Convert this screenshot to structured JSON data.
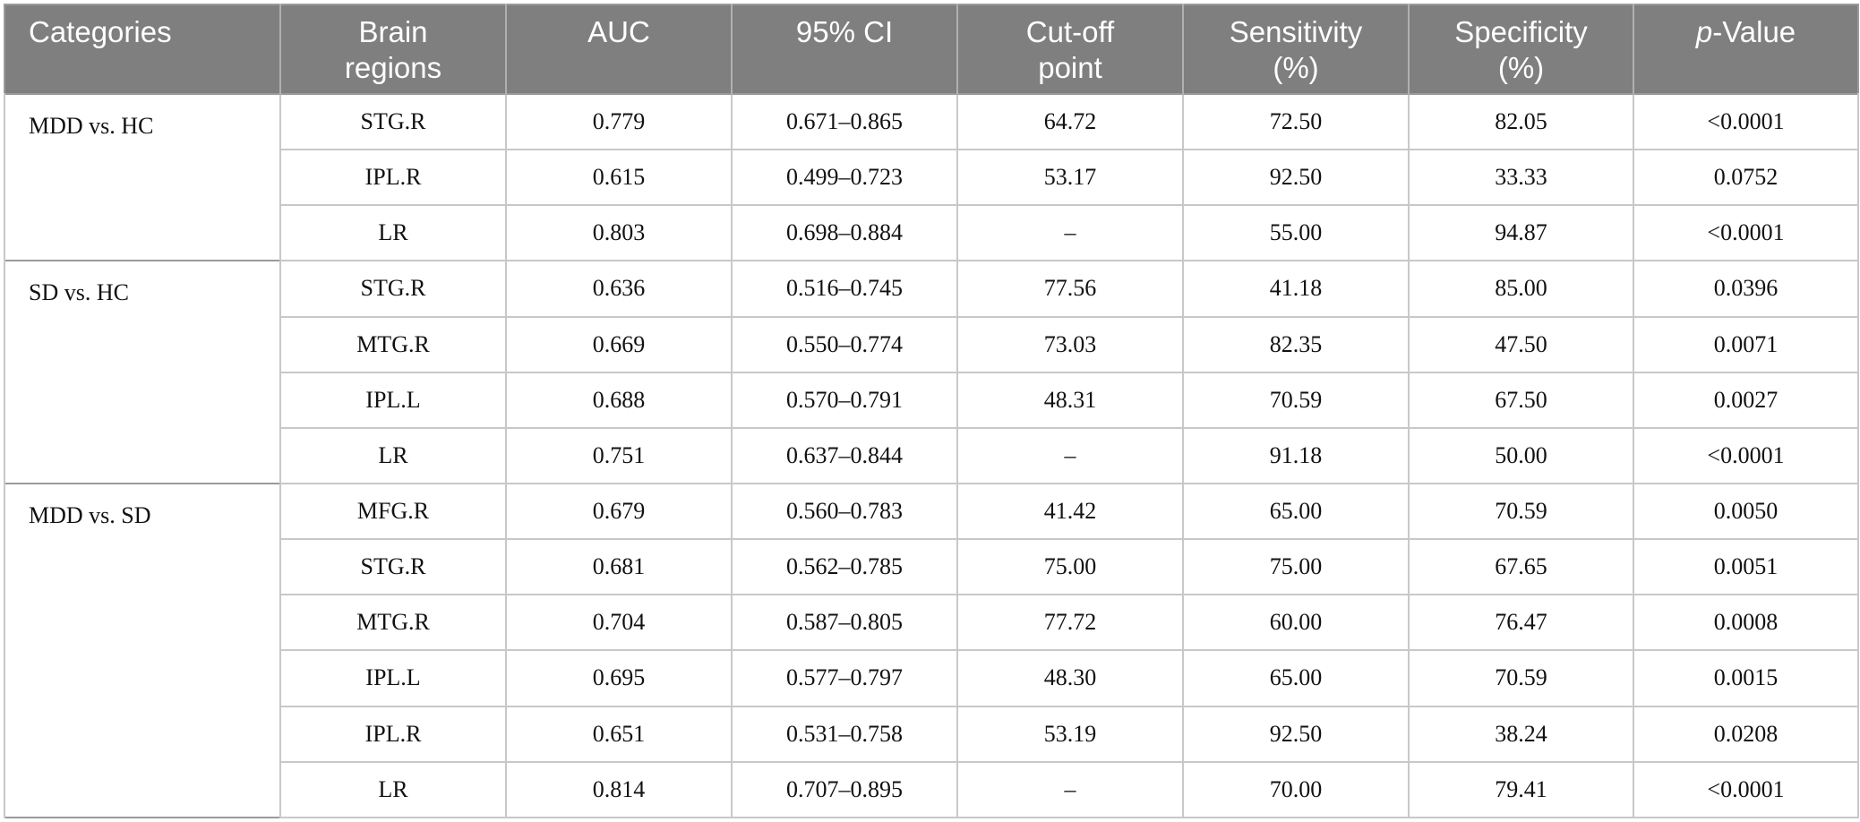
{
  "table": {
    "headers": [
      "Categories",
      "Brain\nregions",
      "AUC",
      "95% CI",
      "Cut-off\npoint",
      "Sensitivity\n(%)",
      "Specificity\n(%)",
      "p-Value"
    ],
    "header_pvalue_italic": "p",
    "header_pvalue_rest": "-Value",
    "groups": [
      {
        "category": "MDD vs. HC",
        "rows": [
          [
            "STG.R",
            "0.779",
            "0.671–0.865",
            "64.72",
            "72.50",
            "82.05",
            "<0.0001"
          ],
          [
            "IPL.R",
            "0.615",
            "0.499–0.723",
            "53.17",
            "92.50",
            "33.33",
            "0.0752"
          ],
          [
            "LR",
            "0.803",
            "0.698–0.884",
            "–",
            "55.00",
            "94.87",
            "<0.0001"
          ]
        ]
      },
      {
        "category": "SD vs. HC",
        "rows": [
          [
            "STG.R",
            "0.636",
            "0.516–0.745",
            "77.56",
            "41.18",
            "85.00",
            "0.0396"
          ],
          [
            "MTG.R",
            "0.669",
            "0.550–0.774",
            "73.03",
            "82.35",
            "47.50",
            "0.0071"
          ],
          [
            "IPL.L",
            "0.688",
            "0.570–0.791",
            "48.31",
            "70.59",
            "67.50",
            "0.0027"
          ],
          [
            "LR",
            "0.751",
            "0.637–0.844",
            "–",
            "91.18",
            "50.00",
            "<0.0001"
          ]
        ]
      },
      {
        "category": "MDD vs. SD",
        "rows": [
          [
            "MFG.R",
            "0.679",
            "0.560–0.783",
            "41.42",
            "65.00",
            "70.59",
            "0.0050"
          ],
          [
            "STG.R",
            "0.681",
            "0.562–0.785",
            "75.00",
            "75.00",
            "67.65",
            "0.0051"
          ],
          [
            "MTG.R",
            "0.704",
            "0.587–0.805",
            "77.72",
            "60.00",
            "76.47",
            "0.0008"
          ],
          [
            "IPL.L",
            "0.695",
            "0.577–0.797",
            "48.30",
            "65.00",
            "70.59",
            "0.0015"
          ],
          [
            "IPL.R",
            "0.651",
            "0.531–0.758",
            "53.19",
            "92.50",
            "38.24",
            "0.0208"
          ],
          [
            "LR",
            "0.814",
            "0.707–0.895",
            "–",
            "70.00",
            "79.41",
            "<0.0001"
          ]
        ]
      }
    ]
  },
  "colors": {
    "header_bg": "#7f7f7f",
    "header_text": "#ffffff",
    "grid": "#c8c8c8",
    "group_rule": "#9a9a9a"
  }
}
